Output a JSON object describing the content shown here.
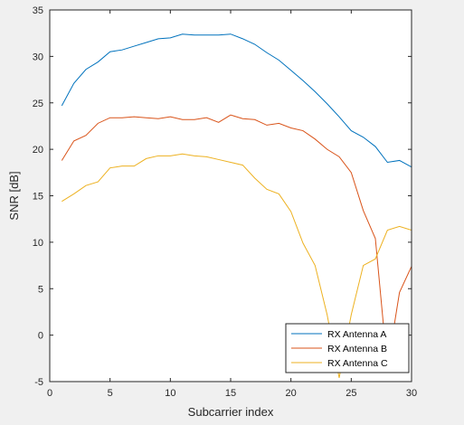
{
  "chart_data": {
    "type": "line",
    "title": "",
    "xlabel": "Subcarrier index",
    "ylabel": "SNR [dB]",
    "xlim": [
      0,
      30
    ],
    "ylim": [
      -5,
      35
    ],
    "xticks": [
      0,
      5,
      10,
      15,
      20,
      25,
      30
    ],
    "yticks": [
      -5,
      0,
      5,
      10,
      15,
      20,
      25,
      30,
      35
    ],
    "grid": false,
    "legend_position": "bottom-right",
    "x": [
      1,
      2,
      3,
      4,
      5,
      6,
      7,
      8,
      9,
      10,
      11,
      12,
      13,
      14,
      15,
      16,
      17,
      18,
      19,
      20,
      21,
      22,
      23,
      24,
      25,
      26,
      27,
      28,
      29,
      30
    ],
    "series": [
      {
        "name": "RX Antenna A",
        "color": "#0072BD",
        "values": [
          24.7,
          27.1,
          28.6,
          29.4,
          30.5,
          30.7,
          31.1,
          31.5,
          31.9,
          32.0,
          32.4,
          32.3,
          32.3,
          32.3,
          32.4,
          31.9,
          31.3,
          30.4,
          29.6,
          28.5,
          27.4,
          26.2,
          24.9,
          23.5,
          22.0,
          21.3,
          20.3,
          18.6,
          18.8,
          18.1
        ]
      },
      {
        "name": "RX Antenna B",
        "color": "#D95319",
        "values": [
          18.8,
          20.9,
          21.5,
          22.8,
          23.4,
          23.4,
          23.5,
          23.4,
          23.3,
          23.5,
          23.2,
          23.2,
          23.4,
          22.9,
          23.7,
          23.3,
          23.2,
          22.6,
          22.8,
          22.3,
          22.0,
          21.1,
          20.0,
          19.2,
          17.5,
          13.4,
          10.4,
          -3.5,
          4.6,
          7.4
        ]
      },
      {
        "name": "RX Antenna C",
        "color": "#EDB120",
        "values": [
          14.4,
          15.2,
          16.1,
          16.5,
          18.0,
          18.2,
          18.2,
          19.0,
          19.3,
          19.3,
          19.5,
          19.3,
          19.2,
          18.9,
          18.6,
          18.3,
          16.9,
          15.7,
          15.2,
          13.3,
          9.9,
          7.5,
          2.2,
          -4.6,
          2.2,
          7.5,
          8.2,
          11.3,
          11.7,
          11.3
        ]
      }
    ]
  }
}
